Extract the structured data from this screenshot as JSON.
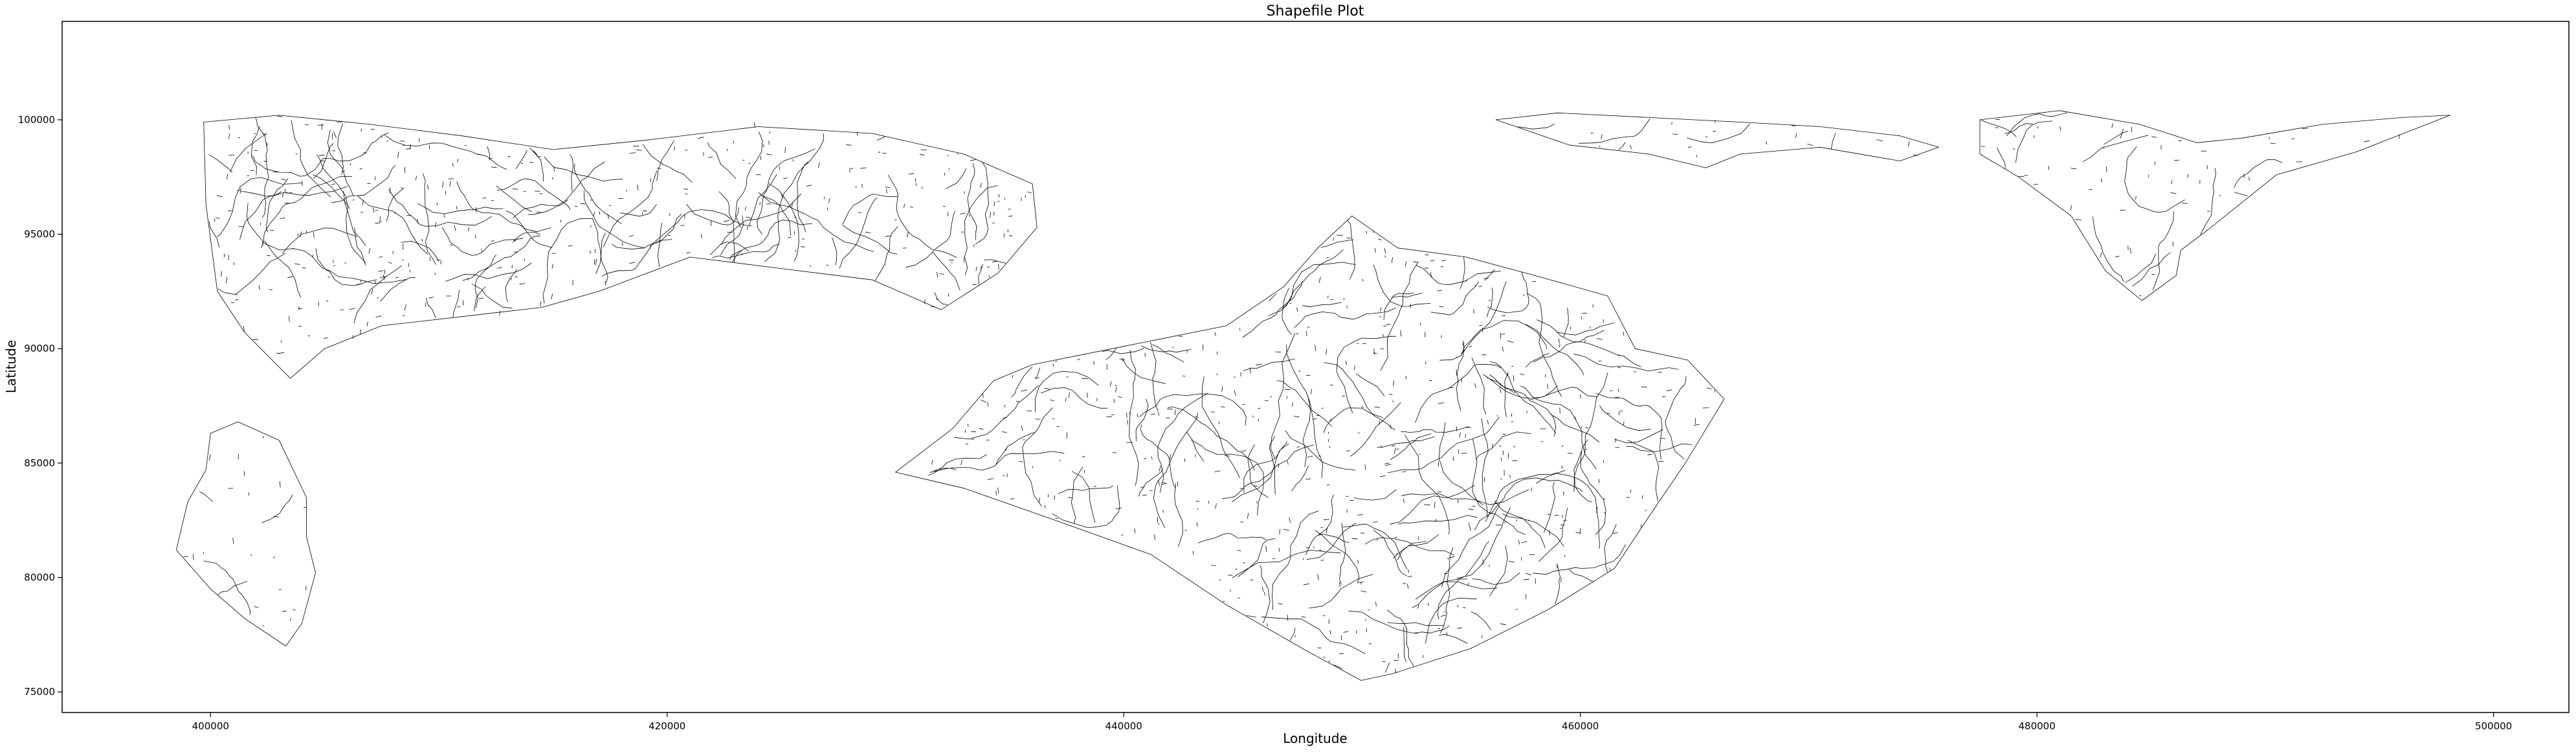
{
  "chart_data": {
    "type": "map-plot",
    "title": "Shapefile Plot",
    "xlabel": "Longitude",
    "ylabel": "Latitude",
    "xlim": [
      393500,
      503300
    ],
    "ylim": [
      74100,
      104300
    ],
    "xticks": [
      400000,
      420000,
      440000,
      460000,
      480000,
      500000
    ],
    "yticks": [
      75000,
      80000,
      85000,
      90000,
      95000,
      100000
    ],
    "line_color": "#000000",
    "background": "#ffffff",
    "grid": false,
    "legend": "none",
    "regions": [
      {
        "id": "west-mainland",
        "outline": [
          [
            399700,
            99900
          ],
          [
            403000,
            100200
          ],
          [
            407000,
            99800
          ],
          [
            411000,
            99300
          ],
          [
            415000,
            98700
          ],
          [
            419000,
            99100
          ],
          [
            424000,
            99700
          ],
          [
            429000,
            99400
          ],
          [
            433000,
            98500
          ],
          [
            436000,
            97200
          ],
          [
            436200,
            95300
          ],
          [
            434500,
            93300
          ],
          [
            432000,
            91700
          ],
          [
            429000,
            93000
          ],
          [
            425000,
            93500
          ],
          [
            421000,
            94000
          ],
          [
            417000,
            92500
          ],
          [
            414500,
            91800
          ],
          [
            411000,
            91400
          ],
          [
            407500,
            91000
          ],
          [
            405000,
            90000
          ],
          [
            403500,
            88700
          ],
          [
            401500,
            90700
          ],
          [
            400300,
            92500
          ],
          [
            399800,
            96300
          ]
        ],
        "density": 1.0,
        "seed": 11
      },
      {
        "id": "isle-of-wight",
        "outline": [
          [
            430000,
            84600
          ],
          [
            432500,
            86500
          ],
          [
            434300,
            88600
          ],
          [
            436000,
            89300
          ],
          [
            440000,
            90100
          ],
          [
            444500,
            91000
          ],
          [
            447000,
            92700
          ],
          [
            448500,
            94400
          ],
          [
            450000,
            95800
          ],
          [
            452000,
            94400
          ],
          [
            455000,
            94000
          ],
          [
            458000,
            93200
          ],
          [
            461200,
            92300
          ],
          [
            462400,
            90000
          ],
          [
            464700,
            89500
          ],
          [
            466300,
            87800
          ],
          [
            464600,
            85000
          ],
          [
            463100,
            82800
          ],
          [
            461500,
            80400
          ],
          [
            458600,
            78600
          ],
          [
            455200,
            76900
          ],
          [
            451800,
            75800
          ],
          [
            450400,
            75500
          ],
          [
            448000,
            76800
          ],
          [
            444500,
            78800
          ],
          [
            441200,
            81000
          ],
          [
            437000,
            82500
          ],
          [
            433000,
            83900
          ]
        ],
        "density": 0.85,
        "seed": 23
      },
      {
        "id": "portsmouth-strip",
        "outline": [
          [
            456300,
            100000
          ],
          [
            459000,
            100300
          ],
          [
            463000,
            100100
          ],
          [
            467000,
            99900
          ],
          [
            470500,
            99700
          ],
          [
            474000,
            99300
          ],
          [
            475700,
            98800
          ],
          [
            474000,
            98200
          ],
          [
            470500,
            98800
          ],
          [
            467000,
            98500
          ],
          [
            465500,
            97900
          ],
          [
            463000,
            98500
          ],
          [
            459500,
            98900
          ]
        ],
        "density": 0.6,
        "seed": 37
      },
      {
        "id": "east-coast",
        "outline": [
          [
            477500,
            100000
          ],
          [
            481000,
            100400
          ],
          [
            484500,
            99800
          ],
          [
            487000,
            99000
          ],
          [
            489000,
            99200
          ],
          [
            492500,
            99800
          ],
          [
            496000,
            100100
          ],
          [
            498100,
            100200
          ],
          [
            494000,
            98600
          ],
          [
            490500,
            97600
          ],
          [
            487500,
            95200
          ],
          [
            486300,
            94300
          ],
          [
            486100,
            93200
          ],
          [
            484600,
            92100
          ],
          [
            483000,
            93400
          ],
          [
            481500,
            95800
          ],
          [
            479200,
            97500
          ],
          [
            477500,
            98500
          ]
        ],
        "density": 0.55,
        "seed": 51
      },
      {
        "id": "south-peninsula",
        "outline": [
          [
            400000,
            86300
          ],
          [
            401200,
            86800
          ],
          [
            403000,
            86000
          ],
          [
            404200,
            83500
          ],
          [
            404200,
            81800
          ],
          [
            404600,
            80200
          ],
          [
            404000,
            78000
          ],
          [
            403300,
            77000
          ],
          [
            401500,
            78200
          ],
          [
            400000,
            79500
          ],
          [
            398500,
            81200
          ],
          [
            399000,
            83300
          ],
          [
            399800,
            84700
          ]
        ],
        "density": 0.35,
        "seed": 67
      }
    ]
  }
}
